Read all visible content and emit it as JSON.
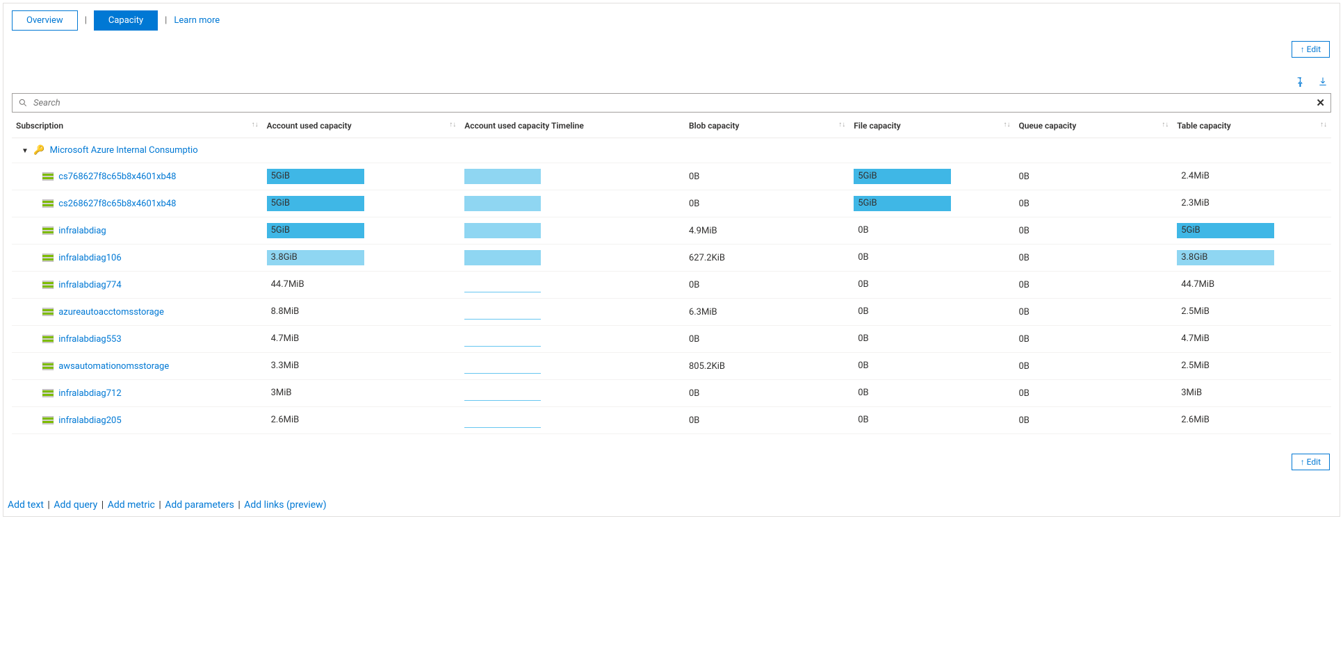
{
  "tabs": {
    "overview": "Overview",
    "capacity": "Capacity",
    "learn_more": "Learn more"
  },
  "buttons": {
    "edit": "↑ Edit"
  },
  "search": {
    "placeholder": "Search"
  },
  "columns": {
    "subscription": "Subscription",
    "used": "Account used capacity",
    "timeline": "Account used capacity Timeline",
    "blob": "Blob capacity",
    "file": "File capacity",
    "queue": "Queue capacity",
    "table": "Table capacity"
  },
  "group": {
    "name": "Microsoft Azure Internal Consumptio"
  },
  "colors": {
    "bar_full": "#3fb7e6",
    "bar_light": "#8fd6f2",
    "timeline": "#8fd6f2",
    "timeline_line": "#66c6f0",
    "accent": "#0078d4"
  },
  "rows": [
    {
      "name": "cs768627f8c65b8x4601xb48",
      "used": "5GiB",
      "used_pct": 100,
      "bar_shade": "full",
      "timeline_pct": 100,
      "blob": "0B",
      "file": "5GiB",
      "file_pct": 100,
      "file_shade": "full",
      "queue": "0B",
      "table": "2.4MiB",
      "table_pct": 0
    },
    {
      "name": "cs268627f8c65b8x4601xb48",
      "used": "5GiB",
      "used_pct": 100,
      "bar_shade": "full",
      "timeline_pct": 100,
      "blob": "0B",
      "file": "5GiB",
      "file_pct": 100,
      "file_shade": "full",
      "queue": "0B",
      "table": "2.3MiB",
      "table_pct": 0
    },
    {
      "name": "infralabdiag",
      "used": "5GiB",
      "used_pct": 100,
      "bar_shade": "full",
      "timeline_pct": 100,
      "blob": "4.9MiB",
      "file": "0B",
      "file_pct": 0,
      "queue": "0B",
      "table": "5GiB",
      "table_pct": 100,
      "table_shade": "full"
    },
    {
      "name": "infralabdiag106",
      "used": "3.8GiB",
      "used_pct": 100,
      "bar_shade": "light",
      "timeline_pct": 100,
      "blob": "627.2KiB",
      "file": "0B",
      "file_pct": 0,
      "queue": "0B",
      "table": "3.8GiB",
      "table_pct": 100,
      "table_shade": "light"
    },
    {
      "name": "infralabdiag774",
      "used": "44.7MiB",
      "used_pct": 0,
      "timeline_pct": 0,
      "timeline_line": true,
      "blob": "0B",
      "file": "0B",
      "file_pct": 0,
      "queue": "0B",
      "table": "44.7MiB",
      "table_pct": 0
    },
    {
      "name": "azureautoacctomsstorage",
      "used": "8.8MiB",
      "used_pct": 0,
      "timeline_pct": 0,
      "timeline_line": true,
      "blob": "6.3MiB",
      "file": "0B",
      "file_pct": 0,
      "queue": "0B",
      "table": "2.5MiB",
      "table_pct": 0
    },
    {
      "name": "infralabdiag553",
      "used": "4.7MiB",
      "used_pct": 0,
      "timeline_pct": 0,
      "timeline_line": true,
      "blob": "0B",
      "file": "0B",
      "file_pct": 0,
      "queue": "0B",
      "table": "4.7MiB",
      "table_pct": 0
    },
    {
      "name": "awsautomationomsstorage",
      "used": "3.3MiB",
      "used_pct": 0,
      "timeline_pct": 0,
      "timeline_line": true,
      "blob": "805.2KiB",
      "file": "0B",
      "file_pct": 0,
      "queue": "0B",
      "table": "2.5MiB",
      "table_pct": 0
    },
    {
      "name": "infralabdiag712",
      "used": "3MiB",
      "used_pct": 0,
      "timeline_pct": 0,
      "timeline_line": true,
      "blob": "0B",
      "file": "0B",
      "file_pct": 0,
      "queue": "0B",
      "table": "3MiB",
      "table_pct": 0
    },
    {
      "name": "infralabdiag205",
      "used": "2.6MiB",
      "used_pct": 0,
      "timeline_pct": 0,
      "timeline_line": true,
      "blob": "0B",
      "file": "0B",
      "file_pct": 0,
      "queue": "0B",
      "table": "2.6MiB",
      "table_pct": 0
    }
  ],
  "footer": {
    "add_text": "Add text",
    "add_query": "Add query",
    "add_metric": "Add metric",
    "add_parameters": "Add parameters",
    "add_links": "Add links (preview)"
  }
}
